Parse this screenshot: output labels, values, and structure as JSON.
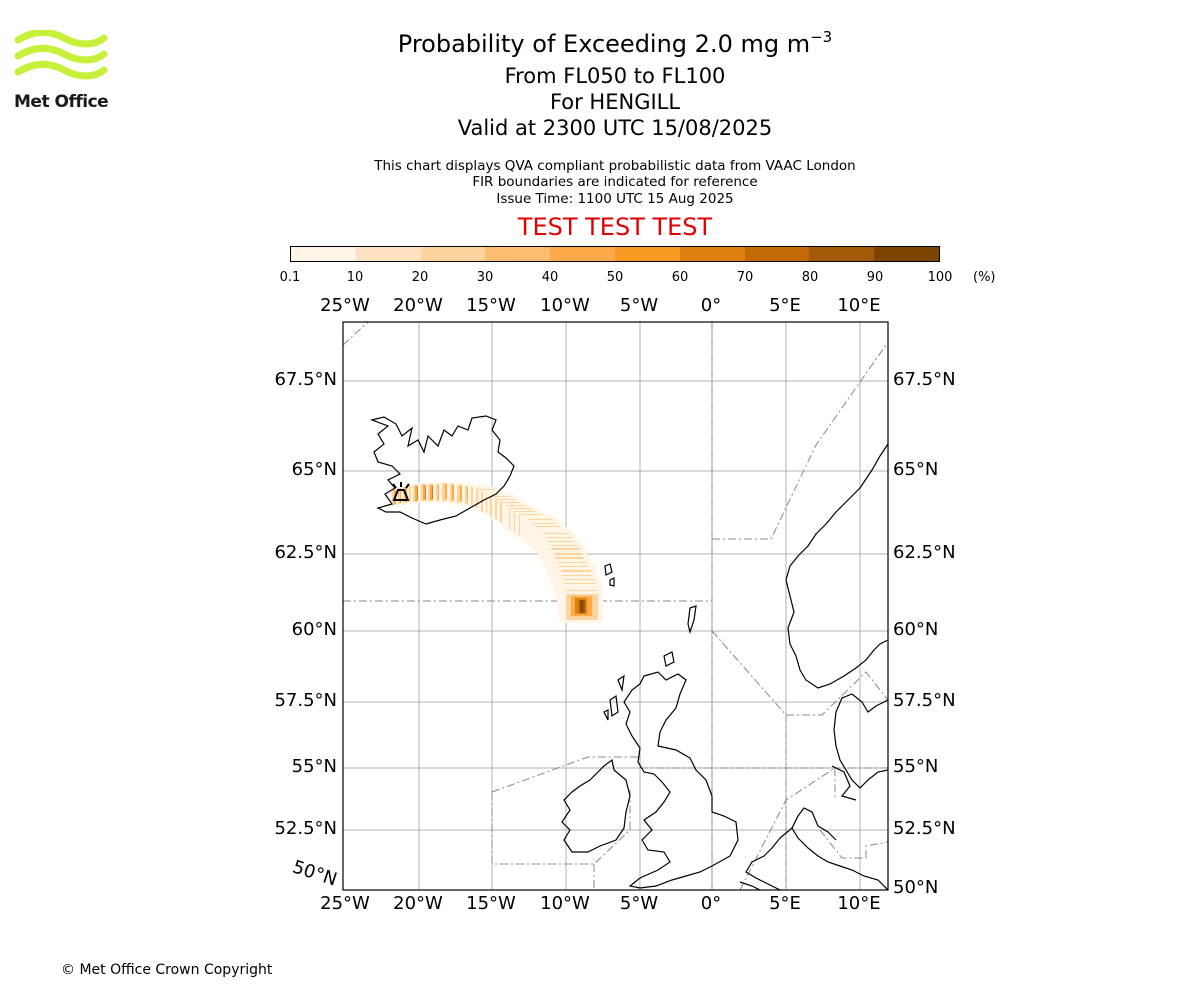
{
  "header": {
    "title_main": "Probability of Exceeding 2.0 mg m",
    "title_exponent": "−3",
    "flight_levels": "From FL050 to FL100",
    "volcano": "For HENGILL",
    "valid_time": "Valid at 2300 UTC 15/08/2025",
    "info_line1": "This chart displays QVA compliant probabilistic data from VAAC London",
    "info_line2": "FIR boundaries are indicated for reference",
    "info_line3": "Issue Time: 1100 UTC 15 Aug 2025",
    "test_banner": "TEST TEST TEST"
  },
  "logo": {
    "text": "Met Office",
    "color": "#c6f03a"
  },
  "colorbar": {
    "ticks": [
      "0.1",
      "10",
      "20",
      "30",
      "40",
      "50",
      "60",
      "70",
      "80",
      "90",
      "100"
    ],
    "unit": "(%)",
    "colors": [
      "#fff5e6",
      "#fee3c2",
      "#fdd49e",
      "#fdbe72",
      "#fdaa4a",
      "#f89b24",
      "#dd7f0e",
      "#c26a08",
      "#a25a06",
      "#7e4404"
    ]
  },
  "map": {
    "lon_labels": [
      "25°W",
      "20°W",
      "15°W",
      "10°W",
      "5°W",
      "0°",
      "5°E",
      "10°E"
    ],
    "lat_labels_left": [
      "67.5°N",
      "65°N",
      "62.5°N",
      "60°N",
      "57.5°N",
      "55°N",
      "52.5°N",
      "50°N"
    ],
    "lat_labels_right": [
      "67.5°N",
      "65°N",
      "62.5°N",
      "60°N",
      "57.5°N",
      "55°N",
      "52.5°N",
      "50°N"
    ],
    "gridlines": true,
    "projection": "stereographic"
  },
  "footer": {
    "copyright": "© Met Office Crown Copyright"
  }
}
